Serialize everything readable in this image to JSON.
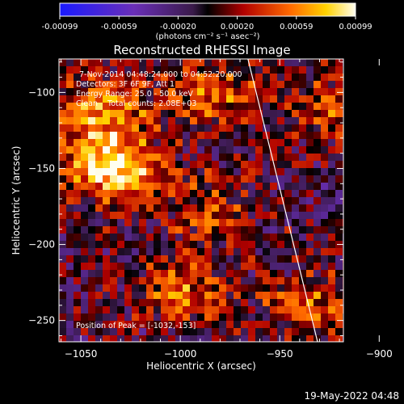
{
  "colorbar": {
    "tick_labels": [
      "-0.00099",
      "-0.00059",
      "-0.00020",
      "0.00020",
      "0.00059",
      "0.00099"
    ],
    "units_label": "(photons cm⁻² s⁻¹ asec⁻²)",
    "range": [
      -0.00099,
      0.00099
    ]
  },
  "chart_data": {
    "type": "heatmap",
    "title": "Reconstructed RHESSI Image",
    "xlabel": "Heliocentric X (arcsec)",
    "ylabel": "Heliocentric Y (arcsec)",
    "xlim": [
      -1061,
      -918
    ],
    "ylim": [
      -264,
      -78
    ],
    "x_ticks": [
      -1050,
      -1000,
      -950,
      -900
    ],
    "y_ticks": [
      -100,
      -150,
      -200,
      -250
    ],
    "x_tick_labels": [
      "−1050",
      "−1000",
      "−950",
      "−900"
    ],
    "y_tick_labels": [
      "−100",
      "−150",
      "−200",
      "−250"
    ],
    "annotations": [
      "7-Nov-2014 04:48:24.000 to 04:52:20.000",
      "Detectors: 3F 6F 9F, Att 1",
      "Energy Range: 25.0 - 50.0 keV",
      "Clean    Total counts: 2.08E+03"
    ],
    "peak_label": "Position of Peak = [-1032,-153]",
    "peak": [
      -1032,
      -153
    ],
    "hotspots": [
      {
        "x": -1035,
        "y": -148,
        "value": 0.00099
      },
      {
        "x": -1040,
        "y": -110,
        "value": 0.0006
      },
      {
        "x": -985,
        "y": -100,
        "value": 0.0005
      },
      {
        "x": -1000,
        "y": -230,
        "value": 0.00055
      },
      {
        "x": -935,
        "y": -240,
        "value": 0.0005
      },
      {
        "x": -925,
        "y": -110,
        "value": 0.00045
      },
      {
        "x": -985,
        "y": -175,
        "value": 0.0004
      }
    ],
    "limb_line": [
      [
        -966,
        -78
      ],
      [
        -931,
        -264
      ]
    ]
  },
  "footer": {
    "date": "19-May-2022 04:48"
  }
}
